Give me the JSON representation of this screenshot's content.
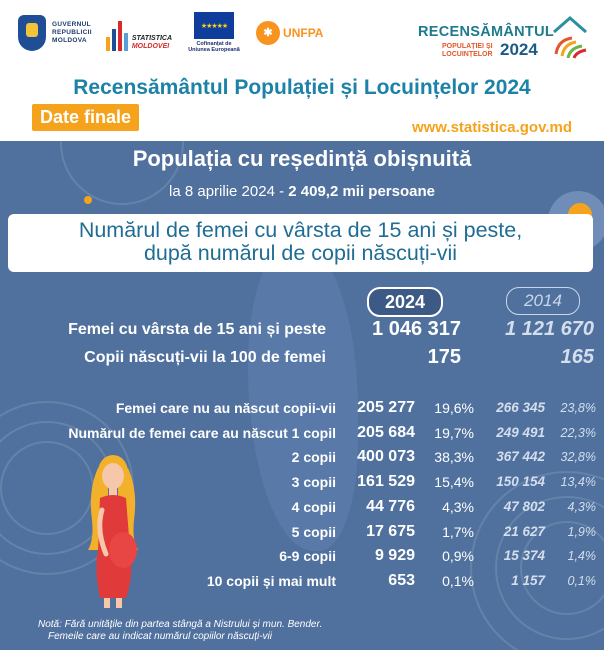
{
  "header": {
    "gov_logo_text": [
      "GUVERNUL",
      "REPUBLICII",
      "MOLDOVA"
    ],
    "stat_logo_text": [
      "STATISTICA",
      "MOLDOVEI"
    ],
    "eu_text": "Cofinanțat de Uniunea Europeană",
    "unfpa_text": "UNFPA",
    "census_logo": {
      "title": "RECENSĂMÂNTUL",
      "sub": [
        "POPULAȚIEI ȘI",
        "LOCUINȚELOR"
      ],
      "year": "2024"
    },
    "main_title": "Recensământul Populației și Locuințelor 2024",
    "badge": "Date finale",
    "website": "www.statistica.gov.md"
  },
  "subtitle": {
    "line1": "Populația cu reședință obișnuită",
    "line2_prefix": "la 8 aprilie 2024 - ",
    "line2_value": "2 409,2 mii persoane"
  },
  "card": {
    "line1": "Numărul de femei cu vârsta de 15 ani și peste,",
    "line2": "după numărul de copii născuți-vii"
  },
  "years": {
    "current": "2024",
    "previous": "2014"
  },
  "summary": [
    {
      "label": "Femei cu vârsta de 15 ani și peste",
      "v2024": "1 046 317",
      "v2014": "1 121 670"
    },
    {
      "label": "Copii născuți-vii la 100 de femei",
      "v2024": "175",
      "v2014": "165"
    }
  ],
  "rows": [
    {
      "label": "Femei care nu au născut copii-vii",
      "v2024": "205 277",
      "p2024": "19,6%",
      "v2014": "266 345",
      "p2014": "23,8%"
    },
    {
      "label": "Numărul de femei care au născut 1 copil",
      "v2024": "205 684",
      "p2024": "19,7%",
      "v2014": "249 491",
      "p2014": "22,3%"
    },
    {
      "label": "2 copii",
      "v2024": "400 073",
      "p2024": "38,3%",
      "v2014": "367 442",
      "p2014": "32,8%"
    },
    {
      "label": "3 copii",
      "v2024": "161 529",
      "p2024": "15,4%",
      "v2014": "150 154",
      "p2014": "13,4%"
    },
    {
      "label": "4 copii",
      "v2024": "44 776",
      "p2024": "4,3%",
      "v2014": "47 802",
      "p2014": "4,3%"
    },
    {
      "label": "5 copii",
      "v2024": "17 675",
      "p2024": "1,7%",
      "v2014": "21 627",
      "p2014": "1,9%"
    },
    {
      "label": "6-9 copii",
      "v2024": "9 929",
      "p2024": "0,9%",
      "v2014": "15 374",
      "p2014": "1,4%"
    },
    {
      "label": "10 copii și mai mult",
      "v2024": "653",
      "p2024": "0,1%",
      "v2014": "1 157",
      "p2014": "0,1%"
    }
  ],
  "note": {
    "line1": "Notă: Fără unitățile din partea stângă a Nistrului și mun. Bender.",
    "line2": "Femeile care au indicat numărul copiilor născuți-vii"
  }
}
